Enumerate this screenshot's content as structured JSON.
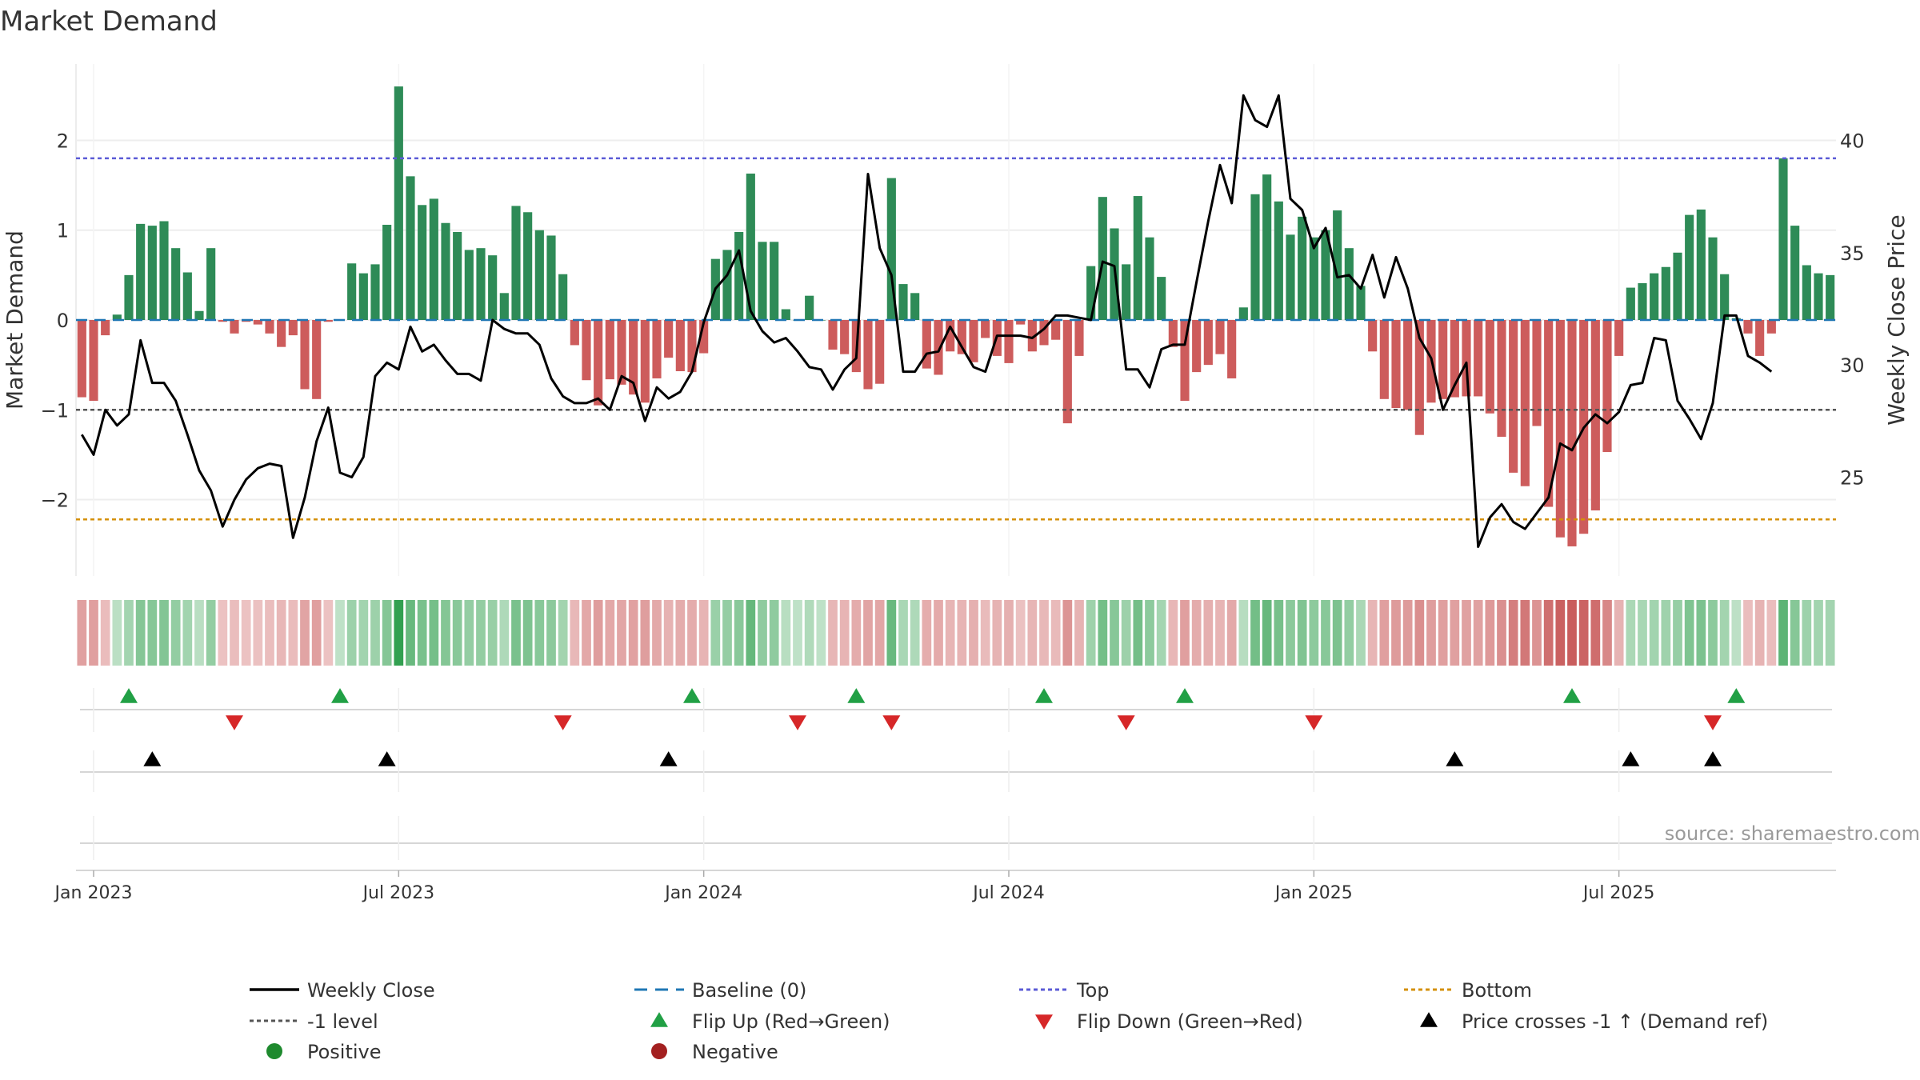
{
  "chart_data": {
    "type": "bar",
    "title": "Market Demand",
    "ylabel": "Market Demand",
    "y2label": "Weekly Close Price",
    "ylim": [
      -2.85,
      2.85
    ],
    "y2lim": [
      20.6,
      43.4
    ],
    "yticks": [
      -2,
      -1,
      0,
      1,
      2
    ],
    "y2ticks": [
      25,
      30,
      35,
      40
    ],
    "x_tick_labels": [
      "Jan 2023",
      "Jul 2023",
      "Jan 2024",
      "Jul 2024",
      "Jan 2025",
      "Jul 2025"
    ],
    "x_tick_weeks": [
      1,
      27,
      53,
      79,
      105,
      131
    ],
    "top_level": 1.8,
    "bottom_level": -2.22,
    "minus_one_level": -1,
    "source": "source: sharemaestro.com",
    "series": [
      {
        "name": "Market Demand",
        "values": [
          -0.86,
          -0.9,
          -0.17,
          0.06,
          0.5,
          1.07,
          1.05,
          1.1,
          0.8,
          0.53,
          0.1,
          0.8,
          -0.02,
          -0.15,
          -0.02,
          -0.05,
          -0.15,
          -0.3,
          -0.17,
          -0.77,
          -0.88,
          -0.02,
          0.0,
          0.63,
          0.52,
          0.62,
          1.06,
          2.6,
          1.6,
          1.28,
          1.35,
          1.08,
          0.98,
          0.78,
          0.8,
          0.72,
          0.3,
          1.27,
          1.2,
          1.0,
          0.94,
          0.51,
          -0.28,
          -0.67,
          -0.95,
          -0.66,
          -0.72,
          -0.83,
          -0.92,
          -0.65,
          -0.42,
          -0.57,
          -0.58,
          -0.37,
          0.68,
          0.78,
          0.98,
          1.63,
          0.87,
          0.87,
          0.12,
          0.0,
          0.27,
          0.0,
          -0.33,
          -0.38,
          -0.58,
          -0.77,
          -0.71,
          1.58,
          0.4,
          0.3,
          -0.54,
          -0.61,
          -0.35,
          -0.38,
          -0.47,
          -0.2,
          -0.4,
          -0.48,
          -0.05,
          -0.35,
          -0.28,
          -0.22,
          -1.15,
          -0.4,
          0.6,
          1.37,
          1.02,
          0.62,
          1.38,
          0.92,
          0.48,
          -0.3,
          -0.9,
          -0.58,
          -0.5,
          -0.38,
          -0.65,
          0.14,
          1.4,
          1.62,
          1.32,
          0.95,
          1.15,
          0.92,
          1.0,
          1.22,
          0.8,
          0.38,
          -0.35,
          -0.88,
          -0.98,
          -1.0,
          -1.28,
          -0.92,
          -0.88,
          -0.86,
          -0.85,
          -0.85,
          -1.04,
          -1.3,
          -1.7,
          -1.85,
          -1.18,
          -2.08,
          -2.42,
          -2.52,
          -2.38,
          -2.12,
          -1.47,
          -0.4,
          0.36,
          0.41,
          0.52,
          0.59,
          0.75,
          1.17,
          1.23,
          0.92,
          0.51,
          0.02,
          -0.15,
          -0.4,
          -0.15,
          1.8,
          1.05,
          0.61,
          0.52,
          0.5
        ]
      },
      {
        "name": "Weekly Close",
        "values": [
          26.9,
          26.0,
          28.0,
          27.3,
          27.8,
          31.1,
          29.2,
          29.2,
          28.4,
          26.9,
          25.3,
          24.4,
          22.8,
          24.0,
          24.9,
          25.4,
          25.6,
          25.5,
          22.3,
          24.1,
          26.6,
          28.1,
          25.2,
          25.0,
          25.9,
          29.5,
          30.1,
          29.8,
          31.7,
          30.6,
          30.9,
          30.2,
          29.6,
          29.6,
          29.3,
          32.0,
          31.6,
          31.4,
          31.4,
          30.9,
          29.4,
          28.6,
          28.3,
          28.3,
          28.5,
          28.0,
          29.5,
          29.2,
          27.5,
          29.0,
          28.5,
          28.8,
          29.7,
          31.9,
          33.4,
          34.0,
          35.1,
          32.4,
          31.5,
          31.0,
          31.2,
          30.6,
          29.9,
          29.8,
          28.9,
          29.8,
          30.3,
          38.5,
          35.2,
          34.0,
          29.7,
          29.7,
          30.5,
          30.6,
          31.7,
          30.8,
          29.9,
          29.7,
          31.3,
          31.3,
          31.3,
          31.2,
          31.6,
          32.2,
          32.2,
          32.1,
          32.0,
          34.6,
          34.4,
          29.8,
          29.8,
          29.0,
          30.7,
          30.9,
          30.9,
          33.7,
          36.4,
          38.9,
          37.2,
          42.0,
          40.9,
          40.6,
          42.0,
          37.4,
          36.9,
          35.2,
          36.1,
          33.9,
          34.0,
          33.4,
          34.9,
          33.0,
          34.8,
          33.4,
          31.2,
          30.3,
          28.0,
          29.1,
          30.1,
          21.9,
          23.2,
          23.8,
          23.0,
          22.7,
          23.4,
          24.1,
          26.5,
          26.2,
          27.2,
          27.8,
          27.4,
          27.9,
          29.1,
          29.2,
          31.2,
          31.1,
          28.4,
          27.6,
          26.7,
          28.3,
          32.2,
          32.2,
          30.4,
          30.1,
          29.7
        ]
      }
    ],
    "flip_up_weeks": [
      4,
      22,
      52,
      66,
      82,
      94,
      127,
      141
    ],
    "flip_down_weeks": [
      13,
      41,
      61,
      69,
      89,
      105,
      139
    ],
    "price_cross_weeks": [
      6,
      26,
      50,
      117,
      132,
      139
    ],
    "colors": {
      "positive": "#2e8b57",
      "negative": "#cd5c5c",
      "price": "#000000",
      "baseline": "#1f77b4",
      "top": "#5b5bd6",
      "bottom": "#d4900a",
      "minus_one": "#555555",
      "flip_up": "#21a045",
      "flip_down": "#d62728",
      "cross": "#000000",
      "legend_positive": "#1e8a2e",
      "legend_negative": "#a32020"
    },
    "legend": [
      {
        "label": "Weekly Close",
        "kind": "line",
        "color": "#000000"
      },
      {
        "label": "Baseline (0)",
        "kind": "dash",
        "color": "#1f77b4"
      },
      {
        "label": "Top",
        "kind": "dot",
        "color": "#5b5bd6"
      },
      {
        "label": "Bottom",
        "kind": "dot",
        "color": "#d4900a"
      },
      {
        "label": "-1 level",
        "kind": "dot",
        "color": "#555555"
      },
      {
        "label": "Flip Up (Red→Green)",
        "kind": "tri-up",
        "color": "#21a045"
      },
      {
        "label": "Flip Down (Green→Red)",
        "kind": "tri-down",
        "color": "#d62728"
      },
      {
        "label": "Price crosses -1 ↑ (Demand ref)",
        "kind": "tri-up",
        "color": "#000000"
      },
      {
        "label": "Positive",
        "kind": "circle",
        "color": "#1e8a2e"
      },
      {
        "label": "Negative",
        "kind": "circle",
        "color": "#a32020"
      }
    ]
  }
}
